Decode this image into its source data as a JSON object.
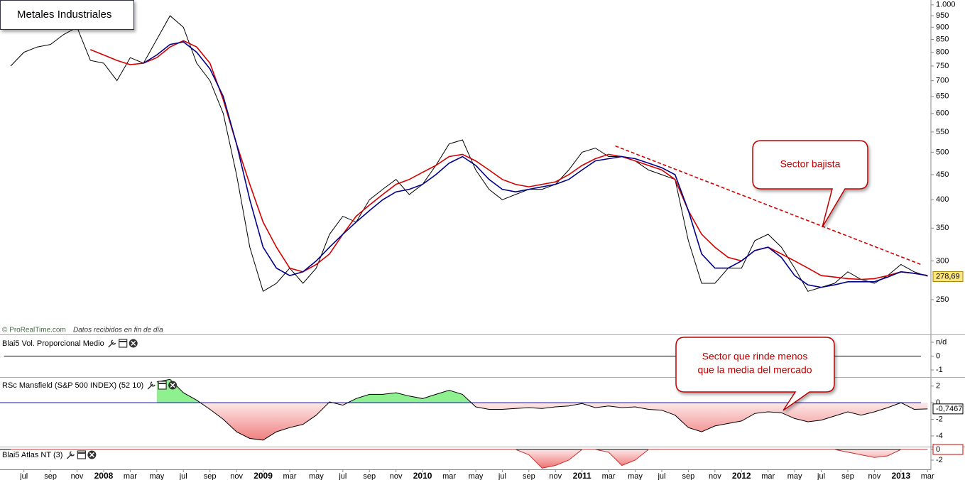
{
  "chart_data": [
    {
      "type": "line",
      "title": "Metales Industriales",
      "source": "© ProRealTime.com",
      "note": "Datos recibidos en fin de día",
      "log_scale": true,
      "x": [
        5,
        6,
        7,
        8,
        9,
        10,
        11,
        12,
        13,
        14,
        15,
        16,
        17,
        18,
        19,
        20,
        21,
        22,
        23,
        24,
        25,
        26,
        27,
        28,
        29,
        30,
        31,
        32,
        33,
        34,
        35,
        36,
        37,
        38,
        39,
        40,
        41,
        42,
        43,
        44,
        45,
        46,
        47,
        48,
        49,
        50,
        51,
        52,
        53,
        54,
        55,
        56,
        57,
        58,
        59,
        60,
        61,
        62,
        63,
        64,
        65,
        66,
        67,
        68,
        69,
        70,
        71,
        72,
        73,
        74
      ],
      "xlim": [
        4.2,
        74.2
      ],
      "xticks": [
        {
          "value": 6,
          "label": "jul"
        },
        {
          "value": 8,
          "label": "sep"
        },
        {
          "value": 10,
          "label": "nov"
        },
        {
          "value": 12,
          "label": "2008"
        },
        {
          "value": 14,
          "label": "mar"
        },
        {
          "value": 16,
          "label": "may"
        },
        {
          "value": 18,
          "label": "jul"
        },
        {
          "value": 20,
          "label": "sep"
        },
        {
          "value": 22,
          "label": "nov"
        },
        {
          "value": 24,
          "label": "2009"
        },
        {
          "value": 26,
          "label": "mar"
        },
        {
          "value": 28,
          "label": "may"
        },
        {
          "value": 30,
          "label": "jul"
        },
        {
          "value": 32,
          "label": "sep"
        },
        {
          "value": 34,
          "label": "nov"
        },
        {
          "value": 36,
          "label": "2010"
        },
        {
          "value": 38,
          "label": "mar"
        },
        {
          "value": 40,
          "label": "may"
        },
        {
          "value": 42,
          "label": "jul"
        },
        {
          "value": 44,
          "label": "sep"
        },
        {
          "value": 46,
          "label": "nov"
        },
        {
          "value": 48,
          "label": "2011"
        },
        {
          "value": 50,
          "label": "mar"
        },
        {
          "value": 52,
          "label": "may"
        },
        {
          "value": 54,
          "label": "jul"
        },
        {
          "value": 56,
          "label": "sep"
        },
        {
          "value": 58,
          "label": "nov"
        },
        {
          "value": 60,
          "label": "2012"
        },
        {
          "value": 62,
          "label": "mar"
        },
        {
          "value": 64,
          "label": "may"
        },
        {
          "value": 66,
          "label": "jul"
        },
        {
          "value": 68,
          "label": "sep"
        },
        {
          "value": 70,
          "label": "nov"
        },
        {
          "value": 72,
          "label": "2013"
        },
        {
          "value": 74,
          "label": "mar"
        }
      ],
      "ylim": [
        213,
        1023
      ],
      "yticks": [
        250,
        300,
        350,
        400,
        450,
        500,
        550,
        600,
        650,
        700,
        750,
        800,
        850,
        900,
        950,
        {
          "value": 1000,
          "label": "1.000"
        }
      ],
      "series": [
        {
          "color": "#000000",
          "values": [
            750,
            800,
            820,
            830,
            870,
            900,
            770,
            760,
            700,
            780,
            760,
            850,
            950,
            900,
            760,
            700,
            600,
            450,
            320,
            260,
            270,
            290,
            270,
            290,
            340,
            370,
            360,
            400,
            420,
            440,
            410,
            430,
            470,
            520,
            530,
            460,
            420,
            400,
            410,
            420,
            420,
            430,
            460,
            500,
            510,
            490,
            490,
            480,
            460,
            450,
            440,
            330,
            270,
            270,
            290,
            290,
            330,
            340,
            320,
            290,
            260,
            265,
            270,
            285,
            275,
            270,
            280,
            295,
            285,
            279
          ]
        },
        {
          "color": "#d40000",
          "values": [
            null,
            null,
            null,
            null,
            null,
            null,
            810,
            790,
            770,
            755,
            760,
            780,
            820,
            845,
            820,
            760,
            640,
            520,
            430,
            360,
            320,
            290,
            285,
            295,
            310,
            340,
            370,
            390,
            410,
            430,
            440,
            455,
            470,
            490,
            495,
            480,
            460,
            440,
            430,
            425,
            430,
            435,
            450,
            470,
            485,
            495,
            490,
            480,
            470,
            460,
            440,
            380,
            340,
            320,
            305,
            300,
            315,
            320,
            310,
            300,
            290,
            280,
            278,
            276,
            275,
            276,
            280,
            285,
            283,
            280
          ]
        },
        {
          "color": "#00008b",
          "values": [
            null,
            null,
            null,
            null,
            null,
            null,
            null,
            null,
            null,
            null,
            760,
            790,
            830,
            840,
            800,
            740,
            650,
            520,
            400,
            320,
            290,
            280,
            285,
            300,
            320,
            340,
            360,
            380,
            400,
            415,
            420,
            430,
            450,
            475,
            490,
            470,
            440,
            420,
            415,
            420,
            425,
            430,
            440,
            460,
            480,
            485,
            490,
            485,
            475,
            465,
            450,
            380,
            310,
            290,
            290,
            300,
            315,
            320,
            305,
            280,
            268,
            265,
            268,
            272,
            272,
            272,
            278,
            285,
            283,
            280
          ]
        }
      ],
      "trendline": {
        "color": "#d40000",
        "x": [
          50.5,
          73.5
        ],
        "values": [
          515,
          295
        ]
      },
      "last_value": {
        "value": 278.69,
        "label": "278,69",
        "color": "#ffe680",
        "border": "#aa8800"
      },
      "annotations": [
        {
          "lines": [
            "Sector bajista"
          ]
        },
        {
          "lines": [
            "Sector que rinde menos",
            "que la media del mercado"
          ]
        }
      ]
    },
    {
      "type": "line",
      "title": "Blai5 Vol. Proporcional Medio",
      "x": [
        4.5,
        73.5
      ],
      "xlim": [
        4.2,
        74.2
      ],
      "ylim": [
        -1.46,
        1.46
      ],
      "yticks": [
        {
          "value": 1,
          "label": "n/d"
        },
        0,
        -1
      ],
      "series": [
        {
          "color": "#000000",
          "values": [
            0,
            0
          ]
        }
      ]
    },
    {
      "type": "area",
      "title": "RSc Mansfield (S&P 500 INDEX) (52 10)",
      "x": [
        5,
        6,
        7,
        8,
        9,
        10,
        11,
        12,
        13,
        14,
        15,
        16,
        17,
        18,
        19,
        20,
        21,
        22,
        23,
        24,
        25,
        26,
        27,
        28,
        29,
        30,
        31,
        32,
        33,
        34,
        35,
        36,
        37,
        38,
        39,
        40,
        41,
        42,
        43,
        44,
        45,
        46,
        47,
        48,
        49,
        50,
        51,
        52,
        53,
        54,
        55,
        56,
        57,
        58,
        59,
        60,
        61,
        62,
        63,
        64,
        65,
        66,
        67,
        68,
        69,
        70,
        71,
        72,
        73,
        74
      ],
      "xlim": [
        4.2,
        74.2
      ],
      "ylim": [
        -5.2,
        3
      ],
      "yticks": [
        2,
        0,
        -2,
        -4
      ],
      "baseline_color": "#0000cc",
      "pos_color": "#8ff08f",
      "neg_color": "#ee6f6f",
      "series": [
        {
          "color": "#000000",
          "values": [
            null,
            null,
            null,
            null,
            null,
            null,
            null,
            null,
            null,
            null,
            null,
            2.5,
            2.8,
            1.2,
            0.3,
            -0.8,
            -2,
            -3.5,
            -4.3,
            -4.5,
            -3.5,
            -3,
            -2.6,
            -1.5,
            0.1,
            -0.3,
            0.5,
            1,
            1,
            1.2,
            0.8,
            0.5,
            1,
            1.5,
            1,
            -0.5,
            -0.8,
            -0.8,
            -0.7,
            -0.6,
            -0.7,
            -0.5,
            -0.4,
            -0.1,
            -0.6,
            -0.4,
            -0.6,
            -0.5,
            -0.8,
            -0.9,
            -1.5,
            -3,
            -3.5,
            -2.8,
            -2.5,
            -2.2,
            -1.3,
            -1.1,
            -1.2,
            -1.9,
            -2.3,
            -2.1,
            -1.6,
            -1.1,
            -1.5,
            -1.1,
            -0.6,
            0,
            -0.8,
            -0.75
          ]
        }
      ],
      "last_value": {
        "value": -0.7467,
        "label": "-0,7467",
        "color": "#ffffff",
        "border": "#000000"
      }
    },
    {
      "type": "area",
      "title": "Blai5 Atlas NT (3)",
      "x": [
        5,
        6,
        7,
        8,
        9,
        10,
        11,
        12,
        13,
        14,
        15,
        16,
        17,
        18,
        19,
        20,
        21,
        22,
        23,
        24,
        25,
        26,
        27,
        28,
        29,
        30,
        31,
        32,
        33,
        34,
        35,
        36,
        37,
        38,
        39,
        40,
        41,
        42,
        43,
        44,
        45,
        46,
        47,
        48,
        49,
        50,
        51,
        52,
        53,
        54,
        55,
        56,
        57,
        58,
        59,
        60,
        61,
        62,
        63,
        64,
        65,
        66,
        67,
        68,
        69,
        70,
        71,
        72,
        73,
        74
      ],
      "xlim": [
        4.2,
        74.2
      ],
      "ylim": [
        -3.6,
        0.4
      ],
      "yticks": [
        0,
        -2
      ],
      "baseline_color": "#000000",
      "pos_color": "#8ff08f",
      "neg_color": "#ee6f6f",
      "series": [
        {
          "color": "#c83030",
          "values": [
            0,
            0,
            0,
            0,
            0,
            0,
            0,
            0,
            0,
            0,
            0,
            0,
            0,
            0,
            0,
            0,
            0,
            0,
            0,
            0,
            0,
            0,
            0,
            0,
            0,
            0,
            0,
            0,
            0,
            0,
            0,
            0,
            0,
            0,
            0,
            0,
            0,
            0,
            0,
            -1,
            -3.5,
            -3,
            -2,
            0,
            0,
            -0.5,
            -3,
            -2,
            0,
            0,
            0,
            0,
            0,
            0,
            0,
            0,
            0,
            0,
            0,
            0,
            0,
            0,
            0,
            -0.5,
            -1,
            -1.5,
            -1.2,
            0,
            0,
            0
          ]
        }
      ],
      "last_value": {
        "value": 0,
        "label": "0",
        "color": "#ffffff",
        "border": "#d40000"
      }
    }
  ]
}
